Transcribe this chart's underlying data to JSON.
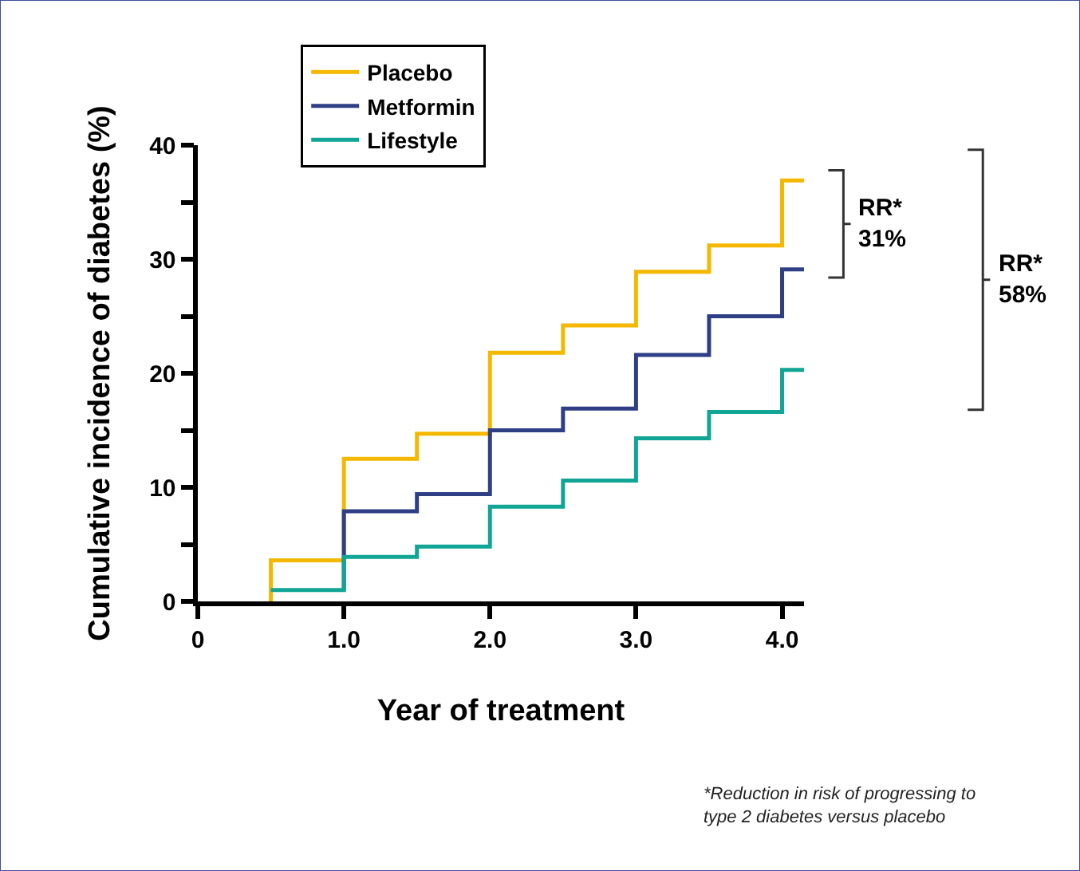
{
  "chart_data": {
    "type": "step",
    "xlabel": "Year of treatment",
    "ylabel": "Cumulative incidence of diabetes (%)",
    "xlim": [
      0,
      4.15
    ],
    "ylim": [
      0,
      40
    ],
    "xticks": [
      0,
      {
        "value": 1,
        "label": "1.0"
      },
      {
        "value": 2,
        "label": "2.0"
      },
      {
        "value": 3,
        "label": "3.0"
      },
      {
        "value": 4,
        "label": "4.0"
      }
    ],
    "yticks": [
      0,
      {
        "value": 5,
        "label": null
      },
      10,
      {
        "value": 15,
        "label": null
      },
      20,
      {
        "value": 25,
        "label": null
      },
      30,
      {
        "value": 35,
        "label": null
      },
      40
    ],
    "legend": "top left",
    "marker": "none",
    "line_style": "solid",
    "series": [
      {
        "name": "Placebo",
        "color": "#f5b800",
        "x": [
          0.5,
          0.5,
          1.0,
          1.5,
          2.0,
          2.5,
          3.0,
          3.5,
          4.0,
          4.15
        ],
        "values": [
          0,
          3.6,
          12.5,
          14.7,
          21.8,
          24.2,
          28.9,
          31.2,
          36.9,
          36.9
        ]
      },
      {
        "name": "Metformin",
        "color": "#2e3f86",
        "x": [
          1.0,
          1.0,
          1.5,
          2.0,
          2.5,
          3.0,
          3.5,
          4.0,
          4.15
        ],
        "values": [
          1.0,
          7.9,
          9.4,
          15.0,
          16.9,
          21.6,
          25.0,
          29.1,
          29.1
        ]
      },
      {
        "name": "Lifestyle",
        "color": "#10a594",
        "x": [
          0.5,
          1.0,
          1.5,
          2.0,
          2.5,
          3.0,
          3.5,
          4.0,
          4.15
        ],
        "values": [
          1.0,
          3.9,
          4.8,
          8.3,
          10.6,
          14.3,
          16.6,
          20.3,
          20.3
        ]
      }
    ],
    "annotations": [
      "RR*\n31%",
      "RR*\n58%",
      "*Reduction in risk of progressing to\ntype 2 diabetes versus placebo"
    ]
  }
}
